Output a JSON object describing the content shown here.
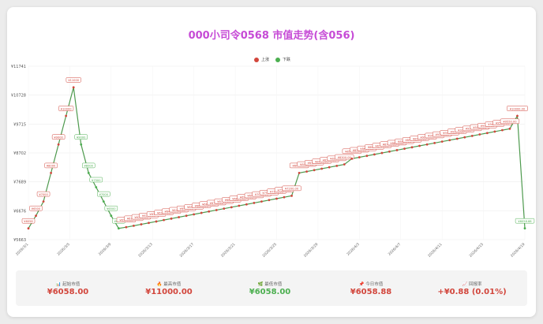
{
  "chart_data": {
    "type": "line",
    "title": "000小司令0568 市值走势(含056)",
    "legend": [
      {
        "name": "上涨",
        "color": "#d2463c"
      },
      {
        "name": "下跌",
        "color": "#4caf50"
      }
    ],
    "y_ticks": [
      "¥11741",
      "¥10728",
      "¥9715",
      "¥8702",
      "¥7689",
      "¥6676",
      "¥5663"
    ],
    "ylim": [
      5663,
      11741
    ],
    "x_ticks": [
      "2026/3/1",
      "2026/3/5",
      "2026/3/9",
      "2026/3/13",
      "2026/3/17",
      "2026/3/21",
      "2026/3/25",
      "2026/3/29",
      "2026/4/3",
      "2026/4/7",
      "2026/4/11",
      "2026/4/15",
      "2026/4/19"
    ],
    "values": [
      6058,
      6500,
      7000,
      8000,
      9000,
      10000,
      11000,
      9000,
      8000,
      7500,
      7000,
      6500,
      6058,
      6100,
      6150,
      6200,
      6250,
      6300,
      6350,
      6400,
      6450,
      6500,
      6550,
      6600,
      6650,
      6700,
      6750,
      6800,
      6850,
      6900,
      6950,
      7000,
      7050,
      7100,
      7150,
      7200,
      8000,
      8050,
      8100,
      8150,
      8200,
      8250,
      8300,
      8500,
      8550,
      8600,
      8650,
      8700,
      8750,
      8800,
      8850,
      8900,
      8950,
      9000,
      9050,
      9100,
      9150,
      9200,
      9250,
      9300,
      9350,
      9400,
      9450,
      9500,
      9550,
      10000,
      6058.88
    ],
    "labels": [
      "¥6058",
      "¥6500",
      "¥7000",
      "¥8000",
      "¥9000",
      "¥10000",
      "¥11000",
      "¥9000",
      "¥8000",
      "¥7500",
      "¥7000",
      "¥6500",
      "¥6058",
      "¥6100.00",
      "¥6150.00",
      "¥6200.00",
      "¥6250.00",
      "¥6300.00",
      "¥6350.00",
      "¥6400.00",
      "¥6450.00",
      "¥6500.00",
      "¥6550.00",
      "¥6600.00",
      "¥6650.00",
      "¥6700.00",
      "¥6750.00",
      "¥6800.00",
      "¥6850.00",
      "¥6900.00",
      "¥6950.00",
      "¥7000.00",
      "¥7050.00",
      "¥7100.00",
      "¥7150.00",
      "¥7200.00",
      "¥8000.00",
      "¥8050.00",
      "¥8100.00",
      "¥8150.00",
      "¥8200.00",
      "¥8250.00",
      "¥8300.00",
      "¥8500.00",
      "¥8550.00",
      "¥8600.00",
      "¥8650.00",
      "¥8700.00",
      "¥8750.00",
      "¥8800.00",
      "¥8850.00",
      "¥8900.00",
      "¥8950.00",
      "¥9000.00",
      "¥9050.00",
      "¥9100.00",
      "¥9150.00",
      "¥9200.00",
      "¥9250.00",
      "¥9300.00",
      "¥9350.00",
      "¥9400.00",
      "¥9450.00",
      "¥9500.00",
      "¥9550.00",
      "¥10000.00",
      "¥6058.88"
    ],
    "colors": {
      "up": "#d2463c",
      "down": "#4caf50",
      "line": "#4e9a4e"
    }
  },
  "stats": [
    {
      "icon": "📊",
      "label": "起始市值",
      "value": "¥6058.00",
      "color": "#d2463c"
    },
    {
      "icon": "🔥",
      "label": "最高市值",
      "value": "¥11000.00",
      "color": "#d2463c"
    },
    {
      "icon": "🌿",
      "label": "最低市值",
      "value": "¥6058.00",
      "color": "#4caf50"
    },
    {
      "icon": "📌",
      "label": "今日市值",
      "value": "¥6058.88",
      "color": "#d2463c"
    },
    {
      "icon": "📈",
      "label": "回报率",
      "value": "+¥0.88 (0.01%)",
      "color": "#d2463c"
    }
  ]
}
